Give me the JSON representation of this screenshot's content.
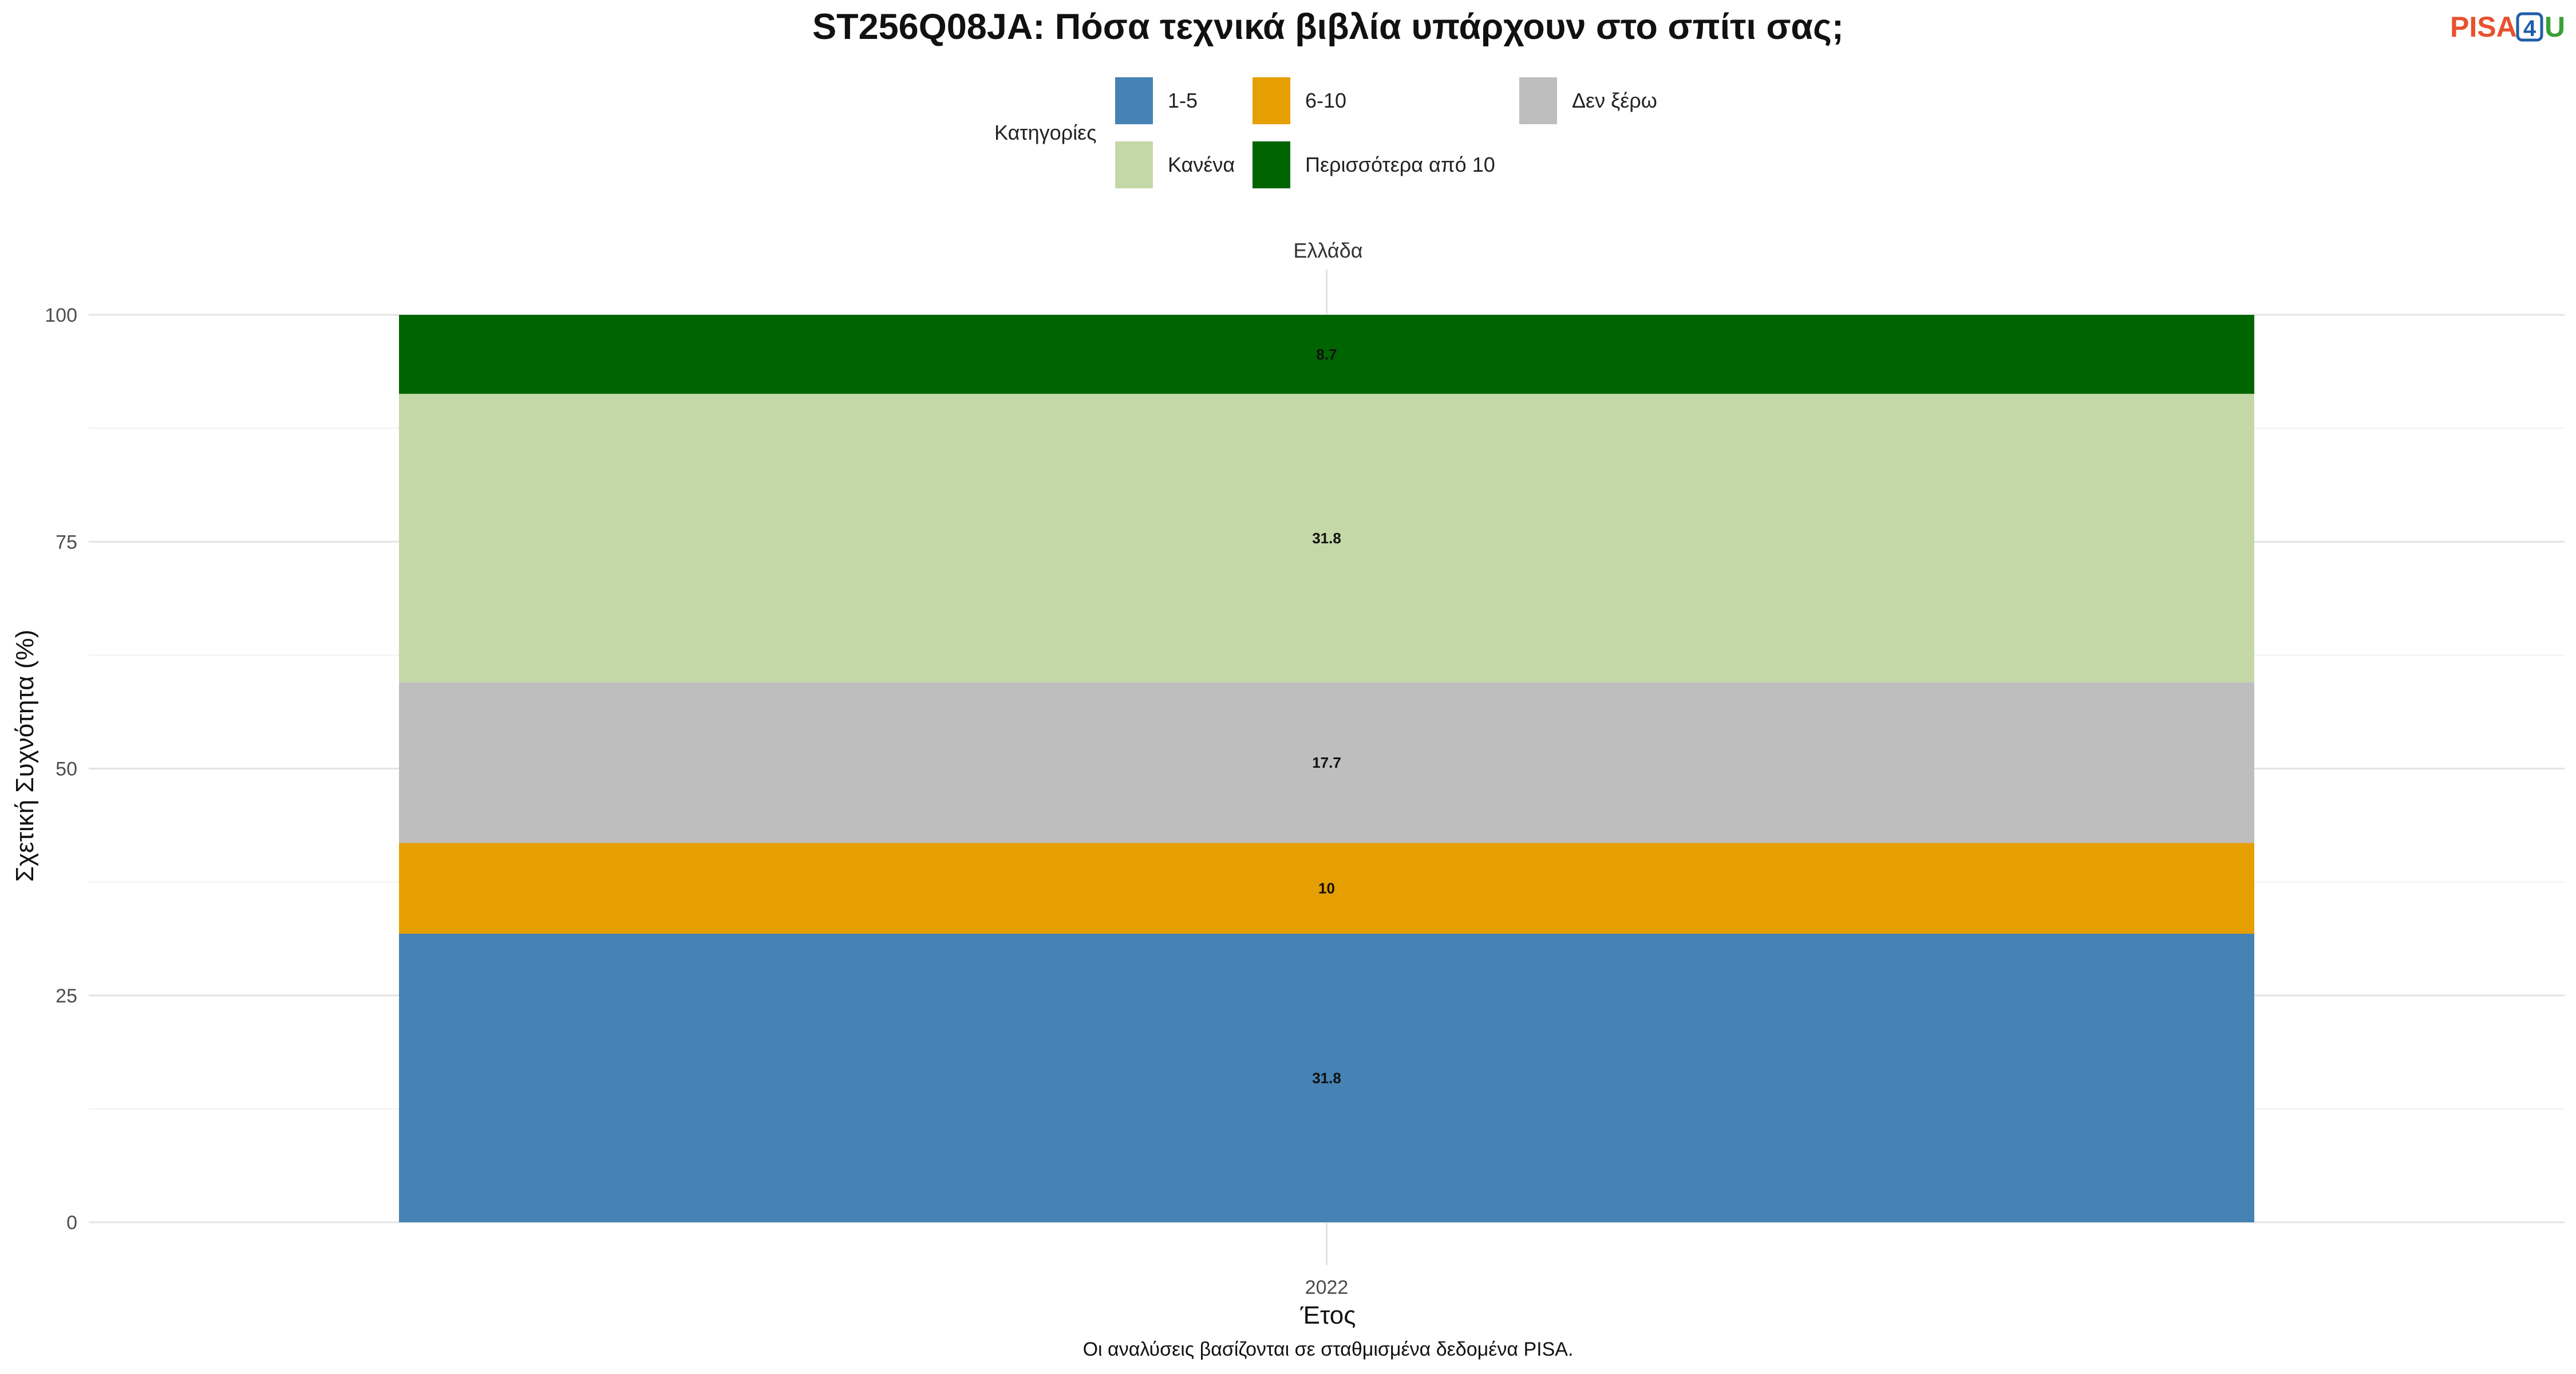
{
  "brand": {
    "pisa": "PISA",
    "num": "4",
    "u": "U",
    "pisa_color": "#e8512e",
    "num_color": "#1f5ea8",
    "u_color": "#3aa037"
  },
  "chart_data": {
    "type": "bar",
    "stacked": true,
    "title": "ST256Q08JA: Πόσα τεχνικά βιβλία υπάρχουν στο σπίτι σας;",
    "facet": "Ελλάδα",
    "legend_title": "Κατηγορίες",
    "xlabel": "Έτος",
    "ylabel": "Σχετική Συχνότητα (%)",
    "caption": "Οι αναλύσεις βασίζονται σε σταθμισμένα δεδομένα PISA.",
    "categories": [
      "2022"
    ],
    "ylim": [
      0,
      100
    ],
    "yticks": [
      0,
      25,
      50,
      75,
      100
    ],
    "grid": true,
    "legend_position": "top",
    "legend": [
      {
        "name": "1-5",
        "color": "#4682b4"
      },
      {
        "name": "6-10",
        "color": "#e69f00"
      },
      {
        "name": "Δεν ξέρω",
        "color": "#bebebe"
      },
      {
        "name": "Κανένα",
        "color": "#c3d8a6"
      },
      {
        "name": "Περισσότερα από 10",
        "color": "#006400"
      }
    ],
    "series": [
      {
        "name": "1-5",
        "color": "#4682b4",
        "values": [
          31.8
        ]
      },
      {
        "name": "6-10",
        "color": "#e69f00",
        "values": [
          10
        ]
      },
      {
        "name": "Δεν ξέρω",
        "color": "#bebebe",
        "values": [
          17.7
        ]
      },
      {
        "name": "Κανένα",
        "color": "#c3d8a6",
        "values": [
          31.8
        ]
      },
      {
        "name": "Περισσότερα από 10",
        "color": "#006400",
        "values": [
          8.7
        ]
      }
    ]
  }
}
